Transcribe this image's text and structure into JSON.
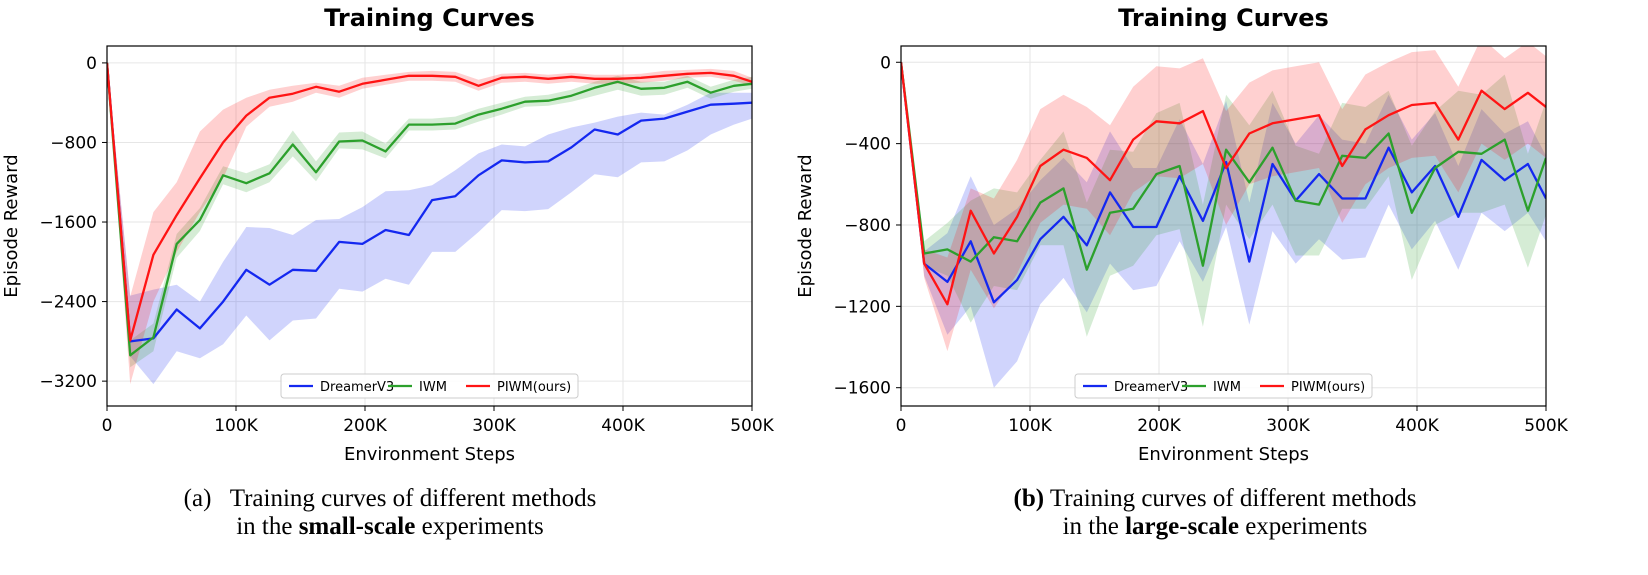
{
  "chart_data": [
    {
      "type": "line",
      "title": "Training Curves",
      "xlabel": "Environment Steps",
      "ylabel": "Episode Reward",
      "xlim": [
        0,
        500000
      ],
      "ylim": [
        -3450,
        170
      ],
      "xticks": [
        0,
        100000,
        200000,
        300000,
        400000,
        500000
      ],
      "xtick_labels": [
        "0",
        "100K",
        "200K",
        "300K",
        "400K",
        "500K"
      ],
      "yticks": [
        0,
        -800,
        -1600,
        -2400,
        -3200
      ],
      "ytick_labels": [
        "0",
        "−800",
        "−1600",
        "−2400",
        "−3200"
      ],
      "grid": true,
      "legend_position": "bottom-center",
      "x": [
        0,
        18000,
        36000,
        54000,
        72000,
        90000,
        108000,
        126000,
        144000,
        162000,
        180000,
        198000,
        216000,
        234000,
        252000,
        270000,
        288000,
        306000,
        324000,
        342000,
        360000,
        378000,
        396000,
        414000,
        432000,
        450000,
        468000,
        486000,
        500000
      ],
      "series": [
        {
          "name": "DreamerV3",
          "color": "#1428f0",
          "values": [
            0,
            -2800,
            -2770,
            -2480,
            -2670,
            -2400,
            -2080,
            -2230,
            -2080,
            -2090,
            -1800,
            -1820,
            -1680,
            -1730,
            -1380,
            -1340,
            -1130,
            -980,
            -1000,
            -990,
            -850,
            -670,
            -720,
            -580,
            -560,
            -490,
            -420,
            -410,
            -400
          ],
          "lower": [
            0,
            -2950,
            -3230,
            -2900,
            -2970,
            -2830,
            -2540,
            -2790,
            -2590,
            -2570,
            -2270,
            -2300,
            -2170,
            -2230,
            -1900,
            -1900,
            -1700,
            -1480,
            -1490,
            -1470,
            -1300,
            -1120,
            -1150,
            -1000,
            -990,
            -880,
            -720,
            -620,
            -560
          ],
          "upper": [
            0,
            -2340,
            -2280,
            -2230,
            -2400,
            -2000,
            -1650,
            -1660,
            -1730,
            -1580,
            -1570,
            -1450,
            -1290,
            -1280,
            -1230,
            -1080,
            -910,
            -820,
            -840,
            -720,
            -650,
            -600,
            -540,
            -500,
            -520,
            -420,
            -300,
            -300,
            -300
          ]
        },
        {
          "name": "IWM",
          "color": "#2ca02c",
          "values": [
            0,
            -2940,
            -2760,
            -1820,
            -1580,
            -1130,
            -1210,
            -1110,
            -820,
            -1100,
            -790,
            -780,
            -890,
            -620,
            -620,
            -610,
            -520,
            -460,
            -390,
            -380,
            -330,
            -250,
            -190,
            -260,
            -250,
            -190,
            -300,
            -230,
            -210
          ],
          "lower": [
            0,
            -3060,
            -2900,
            -1960,
            -1690,
            -1220,
            -1300,
            -1200,
            -940,
            -1190,
            -860,
            -870,
            -960,
            -680,
            -680,
            -670,
            -590,
            -520,
            -440,
            -430,
            -390,
            -330,
            -270,
            -330,
            -320,
            -250,
            -360,
            -290,
            -260
          ],
          "upper": [
            0,
            -2790,
            -2620,
            -1720,
            -1460,
            -1040,
            -1110,
            -1020,
            -680,
            -990,
            -700,
            -690,
            -810,
            -560,
            -560,
            -540,
            -460,
            -400,
            -340,
            -320,
            -270,
            -190,
            -130,
            -190,
            -190,
            -130,
            -240,
            -170,
            -140
          ]
        },
        {
          "name": "PIWM(ours)",
          "color": "#ff1414",
          "values": [
            0,
            -2790,
            -1930,
            -1530,
            -1160,
            -800,
            -530,
            -350,
            -310,
            -240,
            -290,
            -210,
            -170,
            -130,
            -130,
            -140,
            -230,
            -150,
            -140,
            -160,
            -140,
            -160,
            -160,
            -150,
            -130,
            -110,
            -100,
            -130,
            -190
          ],
          "lower": [
            0,
            -3230,
            -2400,
            -1900,
            -1500,
            -1160,
            -640,
            -440,
            -390,
            -300,
            -350,
            -260,
            -220,
            -180,
            -180,
            -190,
            -280,
            -200,
            -190,
            -210,
            -190,
            -210,
            -210,
            -200,
            -180,
            -150,
            -140,
            -180,
            -230
          ],
          "upper": [
            0,
            -2350,
            -1500,
            -1200,
            -690,
            -470,
            -350,
            -270,
            -230,
            -200,
            -230,
            -150,
            -120,
            -90,
            -80,
            -90,
            -170,
            -110,
            -100,
            -120,
            -100,
            -120,
            -120,
            -110,
            -80,
            -70,
            -60,
            -80,
            -150
          ]
        }
      ]
    },
    {
      "type": "line",
      "title": "Training Curves",
      "xlabel": "Environment Steps",
      "ylabel": "Episode Reward",
      "xlim": [
        0,
        500000
      ],
      "ylim": [
        -1690,
        80
      ],
      "xticks": [
        0,
        100000,
        200000,
        300000,
        400000,
        500000
      ],
      "xtick_labels": [
        "0",
        "100K",
        "200K",
        "300K",
        "400K",
        "500K"
      ],
      "yticks": [
        0,
        -400,
        -800,
        -1200,
        -1600
      ],
      "ytick_labels": [
        "0",
        "−400",
        "−800",
        "−1200",
        "−1600"
      ],
      "grid": true,
      "legend_position": "bottom-center",
      "x": [
        0,
        18000,
        36000,
        54000,
        72000,
        90000,
        108000,
        126000,
        144000,
        162000,
        180000,
        198000,
        216000,
        234000,
        252000,
        270000,
        288000,
        306000,
        324000,
        342000,
        360000,
        378000,
        396000,
        414000,
        432000,
        450000,
        468000,
        486000,
        500000
      ],
      "series": [
        {
          "name": "DreamerV3",
          "color": "#1428f0",
          "values": [
            0,
            -990,
            -1080,
            -880,
            -1180,
            -1070,
            -870,
            -760,
            -900,
            -640,
            -810,
            -810,
            -560,
            -780,
            -490,
            -980,
            -500,
            -680,
            -550,
            -670,
            -670,
            -420,
            -640,
            -510,
            -760,
            -480,
            -580,
            -500,
            -670
          ],
          "lower": [
            0,
            -1050,
            -1340,
            -1200,
            -1600,
            -1470,
            -1190,
            -1060,
            -1230,
            -990,
            -1120,
            -1100,
            -880,
            -1080,
            -810,
            -1290,
            -830,
            -990,
            -870,
            -970,
            -960,
            -700,
            -920,
            -780,
            -1020,
            -740,
            -830,
            -740,
            -880
          ],
          "upper": [
            0,
            -930,
            -840,
            -560,
            -800,
            -720,
            -580,
            -470,
            -590,
            -340,
            -520,
            -520,
            -280,
            -500,
            -190,
            -690,
            -200,
            -400,
            -260,
            -380,
            -400,
            -160,
            -380,
            -250,
            -510,
            -230,
            -350,
            -290,
            -460
          ]
        },
        {
          "name": "IWM",
          "color": "#2ca02c",
          "values": [
            0,
            -940,
            -920,
            -980,
            -860,
            -880,
            -690,
            -620,
            -1020,
            -740,
            -720,
            -550,
            -510,
            -1000,
            -430,
            -590,
            -420,
            -680,
            -700,
            -460,
            -470,
            -350,
            -740,
            -520,
            -440,
            -450,
            -380,
            -730,
            -470
          ],
          "lower": [
            0,
            -1000,
            -1050,
            -1280,
            -1100,
            -1120,
            -900,
            -900,
            -1350,
            -1050,
            -1000,
            -850,
            -820,
            -1300,
            -700,
            -870,
            -700,
            -950,
            -950,
            -720,
            -720,
            -560,
            -1070,
            -800,
            -740,
            -740,
            -700,
            -1010,
            -750
          ],
          "upper": [
            0,
            -880,
            -790,
            -680,
            -620,
            -640,
            -480,
            -340,
            -690,
            -430,
            -440,
            -250,
            -200,
            -700,
            -160,
            -310,
            -140,
            -410,
            -450,
            -200,
            -220,
            -140,
            -410,
            -240,
            -140,
            -160,
            -60,
            -450,
            -190
          ]
        },
        {
          "name": "PIWM(ours)",
          "color": "#ff1414",
          "values": [
            0,
            -990,
            -1190,
            -730,
            -940,
            -760,
            -510,
            -430,
            -470,
            -580,
            -380,
            -290,
            -300,
            -240,
            -520,
            -350,
            -300,
            -280,
            -260,
            -510,
            -330,
            -260,
            -210,
            -200,
            -380,
            -140,
            -230,
            -150,
            -220
          ],
          "lower": [
            0,
            -1060,
            -1420,
            -1020,
            -1210,
            -1040,
            -790,
            -700,
            -720,
            -850,
            -640,
            -560,
            -570,
            -500,
            -800,
            -600,
            -560,
            -540,
            -520,
            -790,
            -600,
            -520,
            -470,
            -460,
            -640,
            -400,
            -480,
            -400,
            -470
          ],
          "upper": [
            0,
            -920,
            -960,
            -620,
            -670,
            -480,
            -230,
            -160,
            -220,
            -310,
            -120,
            -20,
            -30,
            20,
            -240,
            -100,
            -40,
            -20,
            0,
            -230,
            -60,
            0,
            50,
            60,
            -120,
            120,
            20,
            100,
            30
          ]
        }
      ]
    }
  ],
  "captions": {
    "left": {
      "line1_prefix": "(a)   Training curves of different methods",
      "line2_prefix": "in the ",
      "line2_bold": "small-scale",
      "line2_suffix": " experiments"
    },
    "right": {
      "line1_bold": "(b)",
      "line1_suffix": " Training curves of different methods",
      "line2_prefix": "in the ",
      "line2_bold": "large-scale",
      "line2_suffix": " experiments"
    }
  }
}
